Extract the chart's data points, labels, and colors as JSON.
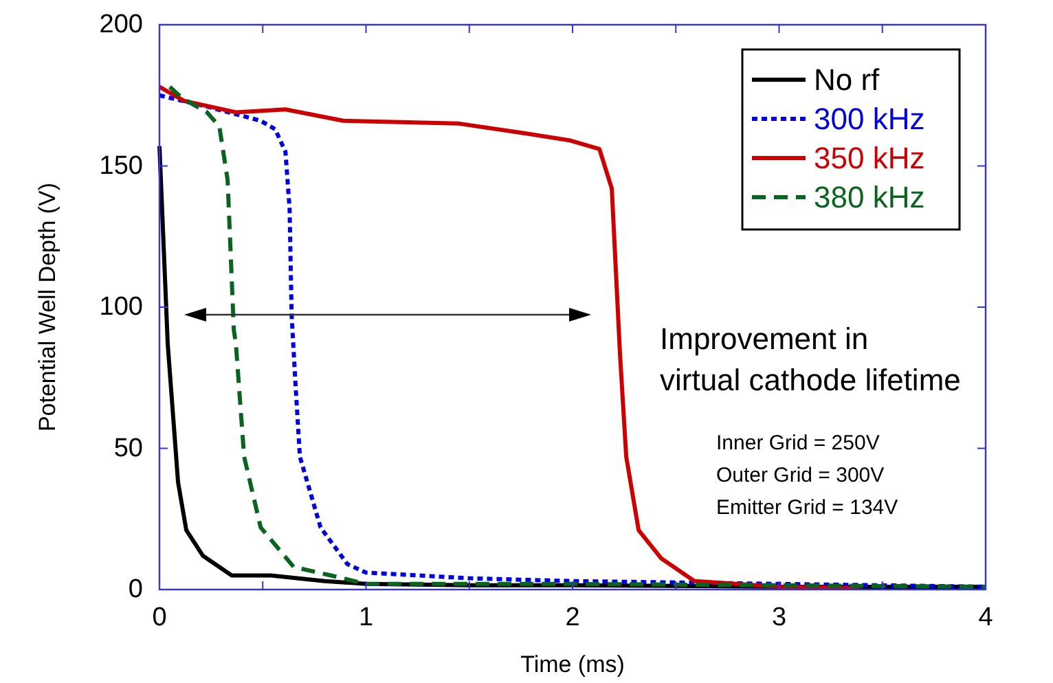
{
  "chart_data": {
    "type": "line",
    "xlabel": "Time (ms)",
    "ylabel": "Potential Well Depth (V)",
    "xlim": [
      0,
      4
    ],
    "ylim": [
      0,
      200
    ],
    "xticks": [
      0,
      {
        "value": 0.5,
        "label": null
      },
      1,
      {
        "value": 1.5,
        "label": null
      },
      2,
      {
        "value": 2.5,
        "label": null
      },
      3,
      {
        "value": 3.5,
        "label": null
      },
      4
    ],
    "yticks": [
      0,
      50,
      100,
      150,
      200
    ],
    "grid": false,
    "legend": "top right",
    "series": [
      {
        "name": "No rf",
        "color": "#000000",
        "line_style": "solid",
        "x": [
          0,
          0.04,
          0.09,
          0.13,
          0.21,
          0.35,
          0.54,
          0.8,
          1,
          1.5,
          2,
          3,
          4
        ],
        "values": [
          157,
          87,
          38,
          21,
          12,
          5,
          5,
          3,
          2,
          1.5,
          1.5,
          1,
          1
        ]
      },
      {
        "name": "300 kHz",
        "color": "#0000dd",
        "line_style": "dotted",
        "x": [
          0,
          0.23,
          0.49,
          0.56,
          0.61,
          0.63,
          0.64,
          0.66,
          0.68,
          0.78,
          0.91,
          1,
          1.5,
          2,
          3,
          4
        ],
        "values": [
          175,
          171,
          166,
          163,
          155,
          135,
          97,
          71,
          47,
          22,
          9,
          6,
          4,
          3,
          2,
          1
        ]
      },
      {
        "name": "350 kHz",
        "color": "#cc0000",
        "line_style": "solid",
        "x": [
          0,
          0.12,
          0.37,
          0.61,
          0.89,
          1.45,
          1.73,
          1.99,
          2.13,
          2.19,
          2.23,
          2.26,
          2.32,
          2.43,
          2.59,
          3,
          3.39
        ],
        "values": [
          178,
          173,
          169,
          170,
          166,
          165,
          162,
          159,
          156,
          142,
          83,
          47,
          21,
          11,
          3,
          1,
          0.5
        ]
      },
      {
        "name": "380 kHz",
        "color": "#0a6420",
        "line_style": "dashed",
        "x": [
          0.05,
          0.11,
          0.23,
          0.29,
          0.33,
          0.36,
          0.37,
          0.41,
          0.49,
          0.65,
          0.83,
          1,
          2,
          3,
          4
        ],
        "values": [
          178,
          174,
          169,
          164,
          145,
          92,
          87,
          47,
          22,
          8,
          5,
          2,
          2,
          1.5,
          1
        ]
      }
    ],
    "annotations": [
      "Improvement in\nvirtual cathode lifetime",
      "Inner Grid = 250V",
      "Outer Grid = 300V",
      "Emitter Grid = 134V"
    ]
  }
}
